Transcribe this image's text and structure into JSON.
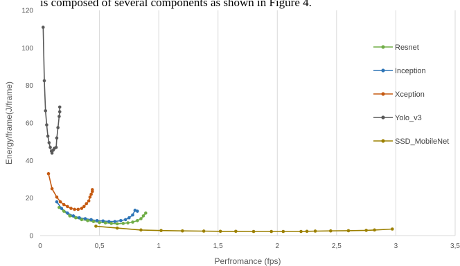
{
  "caption_fragment": "is composed of several components as shown in Figure 4.",
  "chart_data": {
    "type": "scatter",
    "title": "",
    "xlabel": "Perfromance (fps)",
    "ylabel": "Energy/frame(J/frame)",
    "xlim": [
      0,
      3.5
    ],
    "ylim": [
      0,
      120
    ],
    "x_ticks": [
      "0",
      "0,5",
      "1",
      "1,5",
      "2",
      "2,5",
      "3",
      "3,5"
    ],
    "x_tick_values": [
      0,
      0.5,
      1,
      1.5,
      2,
      2.5,
      3,
      3.5
    ],
    "y_ticks": [
      "0",
      "20",
      "40",
      "60",
      "80",
      "100",
      "120"
    ],
    "y_tick_values": [
      0,
      20,
      40,
      60,
      80,
      100,
      120
    ],
    "grid": "vertical",
    "legend_placement": "right",
    "series": [
      {
        "name": "Resnet",
        "color": "#70ad47",
        "points": [
          [
            0.16,
            15
          ],
          [
            0.2,
            13
          ],
          [
            0.25,
            10.5
          ],
          [
            0.3,
            9.5
          ],
          [
            0.35,
            8.5
          ],
          [
            0.4,
            8
          ],
          [
            0.45,
            7.5
          ],
          [
            0.5,
            7
          ],
          [
            0.55,
            6.8
          ],
          [
            0.6,
            6.5
          ],
          [
            0.65,
            6.3
          ],
          [
            0.7,
            6.5
          ],
          [
            0.74,
            6.8
          ],
          [
            0.78,
            7.2
          ],
          [
            0.82,
            8
          ],
          [
            0.85,
            9
          ],
          [
            0.87,
            10.5
          ],
          [
            0.89,
            12
          ]
        ]
      },
      {
        "name": "Inception",
        "color": "#2e75b6",
        "points": [
          [
            0.14,
            18
          ],
          [
            0.18,
            14.5
          ],
          [
            0.23,
            12
          ],
          [
            0.28,
            10.5
          ],
          [
            0.33,
            9.5
          ],
          [
            0.38,
            9
          ],
          [
            0.43,
            8.5
          ],
          [
            0.48,
            8
          ],
          [
            0.53,
            7.8
          ],
          [
            0.58,
            7.5
          ],
          [
            0.63,
            7.5
          ],
          [
            0.68,
            8
          ],
          [
            0.72,
            8.5
          ],
          [
            0.75,
            9.5
          ],
          [
            0.78,
            11
          ],
          [
            0.8,
            13.5
          ],
          [
            0.82,
            13
          ]
        ]
      },
      {
        "name": "Xception",
        "color": "#c55a11",
        "points": [
          [
            0.07,
            33
          ],
          [
            0.1,
            25
          ],
          [
            0.14,
            20.5
          ],
          [
            0.17,
            18
          ],
          [
            0.2,
            16.5
          ],
          [
            0.23,
            15.5
          ],
          [
            0.26,
            14.5
          ],
          [
            0.29,
            14
          ],
          [
            0.32,
            14
          ],
          [
            0.35,
            14.5
          ],
          [
            0.37,
            15.5
          ],
          [
            0.39,
            17
          ],
          [
            0.41,
            18.5
          ],
          [
            0.42,
            20.5
          ],
          [
            0.43,
            22
          ],
          [
            0.44,
            23.5
          ],
          [
            0.44,
            24.5
          ]
        ]
      },
      {
        "name": "Yolo_v3",
        "color": "#595959",
        "points": [
          [
            0.025,
            111
          ],
          [
            0.035,
            82.5
          ],
          [
            0.045,
            66.5
          ],
          [
            0.055,
            59
          ],
          [
            0.065,
            53
          ],
          [
            0.075,
            49.5
          ],
          [
            0.085,
            47
          ],
          [
            0.095,
            45
          ],
          [
            0.1,
            44
          ],
          [
            0.11,
            45.5
          ],
          [
            0.12,
            46.5
          ],
          [
            0.135,
            47
          ],
          [
            0.14,
            52
          ],
          [
            0.15,
            57.5
          ],
          [
            0.16,
            63.5
          ],
          [
            0.165,
            66
          ],
          [
            0.165,
            68.5
          ]
        ]
      },
      {
        "name": "SSD_MobileNet",
        "color": "#9c8000",
        "points": [
          [
            0.47,
            5
          ],
          [
            0.65,
            4
          ],
          [
            0.85,
            3
          ],
          [
            1.02,
            2.7
          ],
          [
            1.2,
            2.5
          ],
          [
            1.38,
            2.4
          ],
          [
            1.52,
            2.3
          ],
          [
            1.65,
            2.3
          ],
          [
            1.8,
            2.2
          ],
          [
            1.95,
            2.2
          ],
          [
            2.05,
            2.2
          ],
          [
            2.2,
            2.2
          ],
          [
            2.25,
            2.3
          ],
          [
            2.32,
            2.4
          ],
          [
            2.45,
            2.5
          ],
          [
            2.6,
            2.6
          ],
          [
            2.75,
            2.8
          ],
          [
            2.82,
            3
          ],
          [
            2.97,
            3.5
          ]
        ]
      }
    ]
  }
}
